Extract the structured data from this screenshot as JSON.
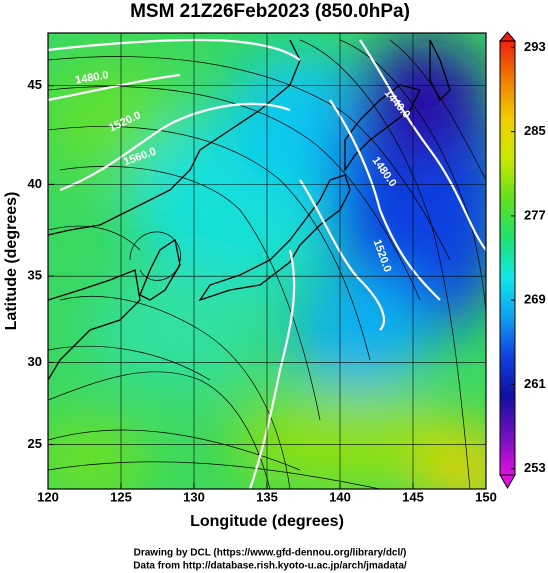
{
  "title": "MSM 21Z26Feb2023 (850.0hPa)",
  "map": {
    "xlabel": "Longitude (degrees)",
    "ylabel": "Latitude  (degrees)",
    "projection": "mercator",
    "grid": true,
    "xlim": [
      120,
      150
    ],
    "xticks": [
      120,
      125,
      130,
      135,
      140,
      145,
      150
    ],
    "ylim": [
      22.2,
      47.5
    ],
    "yticks": [
      25,
      30,
      35,
      40,
      45
    ],
    "contour_labels": [
      "1480.0",
      "1520.0",
      "1560.0",
      "1440.0",
      "1480.0",
      "1520.0"
    ]
  },
  "colorbar": {
    "lim": [
      252.4,
      293.6
    ],
    "ticks": [
      253,
      261,
      269,
      277,
      285,
      293
    ],
    "colors": [
      "#e010e0",
      "#7010c0",
      "#1010a0",
      "#1040e0",
      "#10a0f0",
      "#10e8e8",
      "#20e070",
      "#60e020",
      "#c8e800",
      "#f0d000",
      "#f08000",
      "#f02010"
    ]
  },
  "footer": [
    "Drawing by DCL (https://www.gfd-dennou.org/library/dcl/)",
    "Data from http://database.rish.kyoto-u.ac.jp/arch/jmadata/"
  ]
}
